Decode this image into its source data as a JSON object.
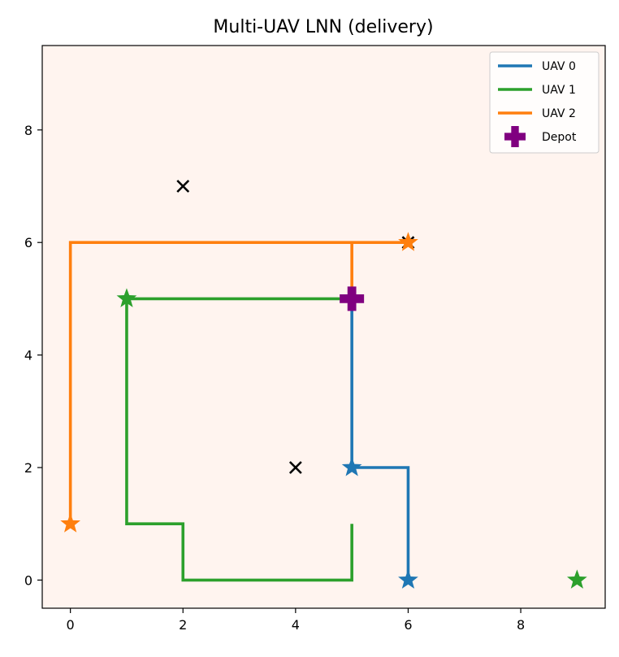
{
  "chart_data": {
    "type": "line",
    "title": "Multi-UAV LNN (delivery)",
    "xlabel": "",
    "ylabel": "",
    "xlim": [
      -0.5,
      9.5
    ],
    "ylim": [
      -0.5,
      9.5
    ],
    "xticks": [
      0,
      2,
      4,
      6,
      8
    ],
    "yticks": [
      0,
      2,
      4,
      6,
      8
    ],
    "grid": false,
    "background_color": "#fff4ef",
    "legend_position": "top-right",
    "series": [
      {
        "name": "UAV 0",
        "color": "#1f77b4",
        "path": [
          [
            5,
            5
          ],
          [
            5,
            4
          ],
          [
            5,
            3
          ],
          [
            5,
            2
          ],
          [
            6,
            2
          ],
          [
            6,
            1
          ],
          [
            6,
            0
          ]
        ],
        "start": [
          5,
          2
        ],
        "goal": [
          6,
          0
        ]
      },
      {
        "name": "UAV 1",
        "color": "#2ca02c",
        "path": [
          [
            5,
            5
          ],
          [
            4,
            5
          ],
          [
            3,
            5
          ],
          [
            2,
            5
          ],
          [
            1,
            5
          ],
          [
            1,
            4
          ],
          [
            1,
            3
          ],
          [
            1,
            2
          ],
          [
            1,
            1
          ],
          [
            2,
            1
          ],
          [
            2,
            0
          ],
          [
            3,
            0
          ],
          [
            4,
            0
          ],
          [
            5,
            0
          ],
          [
            5,
            1
          ]
        ],
        "start": [
          1,
          5
        ],
        "goal": [
          9,
          0
        ]
      },
      {
        "name": "UAV 2",
        "color": "#ff7f0e",
        "path": [
          [
            5,
            5
          ],
          [
            5,
            6
          ],
          [
            4,
            6
          ],
          [
            3,
            6
          ],
          [
            2,
            6
          ],
          [
            1,
            6
          ],
          [
            0,
            6
          ],
          [
            0,
            5
          ],
          [
            0,
            4
          ],
          [
            0,
            3
          ],
          [
            0,
            2
          ],
          [
            0,
            1
          ],
          [
            0,
            6
          ],
          [
            1,
            6
          ],
          [
            2,
            6
          ],
          [
            3,
            6
          ],
          [
            4,
            6
          ],
          [
            5,
            6
          ],
          [
            6,
            6
          ]
        ],
        "start": [
          6,
          6
        ],
        "goal": [
          0,
          1
        ]
      }
    ],
    "obstacles": {
      "color": "#000000",
      "points": [
        [
          2,
          7
        ],
        [
          4,
          2
        ],
        [
          6,
          6
        ]
      ]
    },
    "depot": {
      "name": "Depot",
      "color": "#800080",
      "point": [
        5,
        5
      ]
    }
  }
}
